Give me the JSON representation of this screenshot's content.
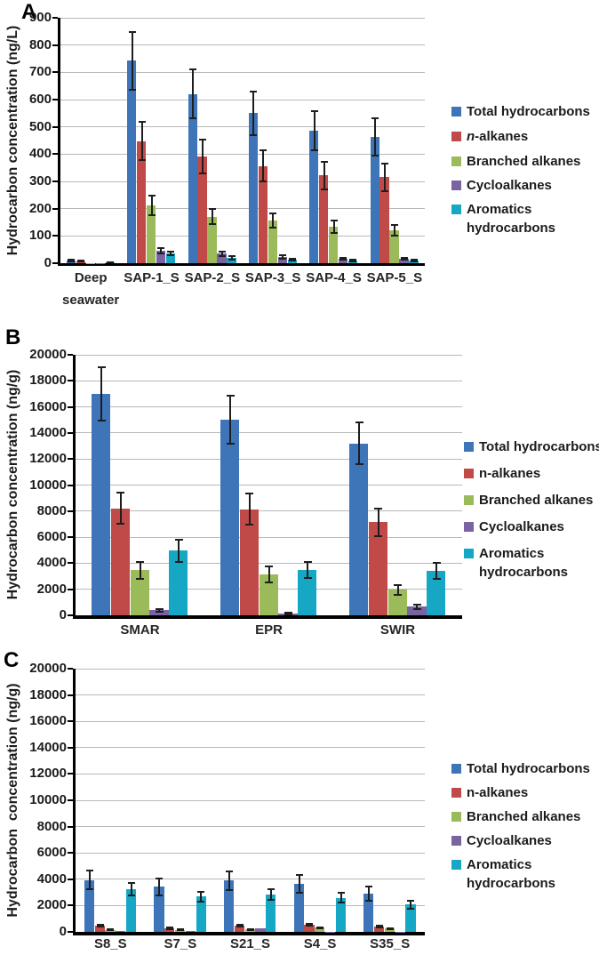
{
  "figure": {
    "panel_letters": [
      "A",
      "B",
      "C"
    ]
  },
  "colors": {
    "total_hydrocarbons": "#3E74B8",
    "n_alkanes": "#C04A47",
    "branched_alkanes": "#9BBA59",
    "cycloalkanes": "#7A63A1",
    "aromatics_hydrocarbons": "#16A7C5",
    "error_bar": "#1e1e1e",
    "gridline": "#b9b9b9",
    "axis": "#000000"
  },
  "legend": {
    "items": [
      "Total hydrocarbons",
      "n-alkanes",
      "Branched alkanes",
      "Cycloalkanes",
      "Aromatics\nhydrocarbons"
    ]
  },
  "chart_data": [
    {
      "type": "bar",
      "panel": "A",
      "title": "",
      "ylabel": "Hydrocarbon concentration (ng/L)",
      "ylim": [
        0,
        900
      ],
      "ytick_step": 100,
      "grid": true,
      "legend_position": "right",
      "categories": [
        "Deep seawater",
        "SAP-1_S",
        "SAP-2_S",
        "SAP-3_S",
        "SAP-4_S",
        "SAP-5_S"
      ],
      "series": [
        {
          "name": "Total hydrocarbons",
          "color": "#3E74B8",
          "values": [
            10,
            742,
            620,
            550,
            487,
            462
          ],
          "errors": [
            3,
            106,
            90,
            80,
            72,
            68
          ]
        },
        {
          "name": "n-alkanes",
          "color": "#C04A47",
          "values": [
            7,
            448,
            390,
            357,
            322,
            315
          ],
          "errors": [
            2,
            70,
            62,
            57,
            50,
            50
          ]
        },
        {
          "name": "Branched alkanes",
          "color": "#9BBA59",
          "values": [
            1,
            212,
            170,
            155,
            135,
            120
          ],
          "errors": [
            0,
            35,
            28,
            26,
            23,
            20
          ]
        },
        {
          "name": "Cycloalkanes",
          "color": "#7A63A1",
          "values": [
            0.5,
            46,
            35,
            22,
            17,
            16
          ],
          "errors": [
            0,
            10,
            8,
            6,
            4,
            4
          ]
        },
        {
          "name": "Aromatics hydrocarbons",
          "color": "#16A7C5",
          "values": [
            3,
            36,
            20,
            12,
            11,
            10
          ],
          "errors": [
            1,
            8,
            6,
            3,
            3,
            3
          ]
        }
      ]
    },
    {
      "type": "bar",
      "panel": "B",
      "title": "",
      "ylabel": "Hydrocarbon concentration (ng/g)",
      "ylim": [
        0,
        20000
      ],
      "ytick_step": 2000,
      "grid": true,
      "legend_position": "right",
      "categories": [
        "SMAR",
        "EPR",
        "SWIR"
      ],
      "series": [
        {
          "name": "Total hydrocarbons",
          "color": "#3E74B8",
          "values": [
            17000,
            15000,
            13200
          ],
          "errors": [
            2050,
            1850,
            1600
          ]
        },
        {
          "name": "n-alkanes",
          "color": "#C04A47",
          "values": [
            8200,
            8150,
            7150
          ],
          "errors": [
            1200,
            1200,
            1050
          ]
        },
        {
          "name": "Branched alkanes",
          "color": "#9BBA59",
          "values": [
            3450,
            3150,
            1950
          ],
          "errors": [
            640,
            600,
            400
          ]
        },
        {
          "name": "Cycloalkanes",
          "color": "#7A63A1",
          "values": [
            400,
            150,
            650
          ],
          "errors": [
            100,
            50,
            150
          ]
        },
        {
          "name": "Aromatics hydrocarbons",
          "color": "#16A7C5",
          "values": [
            4950,
            3500,
            3400
          ],
          "errors": [
            860,
            600,
            600
          ]
        }
      ]
    },
    {
      "type": "bar",
      "panel": "C",
      "title": "",
      "ylabel": "Hydrocarbon  concentration (ng/g)",
      "ylim": [
        0,
        20000
      ],
      "ytick_step": 2000,
      "grid": true,
      "legend_position": "right",
      "categories": [
        "S8_S",
        "S7_S",
        "S21_S",
        "S4_S",
        "S35_S"
      ],
      "series": [
        {
          "name": "Total hydrocarbons",
          "color": "#3E74B8",
          "values": [
            3950,
            3430,
            3900,
            3650,
            2900
          ],
          "errors": [
            700,
            630,
            700,
            650,
            520
          ]
        },
        {
          "name": "n-alkanes",
          "color": "#C04A47",
          "values": [
            470,
            280,
            480,
            520,
            400
          ],
          "errors": [
            60,
            50,
            60,
            60,
            50
          ]
        },
        {
          "name": "Branched alkanes",
          "color": "#9BBA59",
          "values": [
            150,
            150,
            170,
            310,
            260
          ],
          "errors": [
            30,
            30,
            40,
            40,
            35
          ]
        },
        {
          "name": "Cycloalkanes",
          "color": "#7A63A1",
          "values": [
            40,
            90,
            240,
            20,
            20
          ],
          "errors": [
            0,
            0,
            0,
            0,
            0
          ]
        },
        {
          "name": "Aromatics hydrocarbons",
          "color": "#16A7C5",
          "values": [
            3250,
            2680,
            2830,
            2600,
            2080
          ],
          "errors": [
            450,
            350,
            380,
            350,
            300
          ]
        }
      ]
    }
  ]
}
